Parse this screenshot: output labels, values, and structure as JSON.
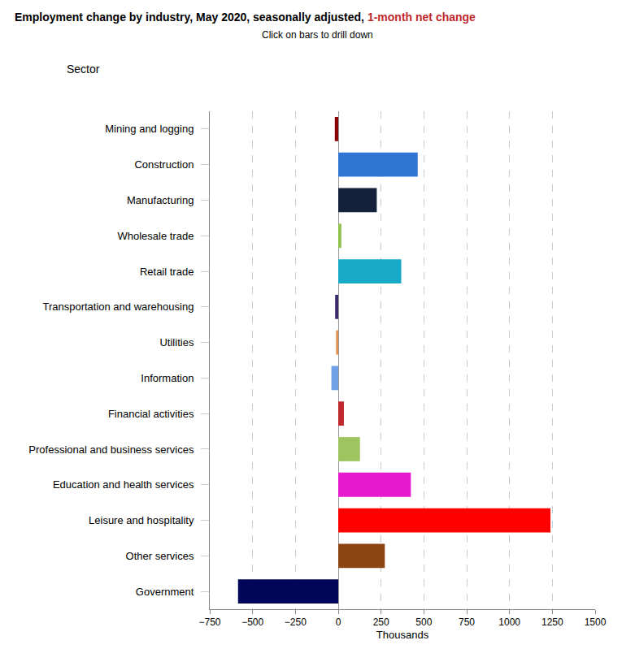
{
  "chart_data": {
    "type": "bar",
    "orientation": "horizontal",
    "title": "Employment change by industry, May 2020, seasonally adjusted, 1-month net change",
    "subtitle": "Click on bars to drill down",
    "y_label": "Sector",
    "x_label": "Thousands",
    "categories": [
      "Mining and logging",
      "Construction",
      "Manufacturing",
      "Wholesale trade",
      "Retail trade",
      "Transportation and warehousing",
      "Utilities",
      "Information",
      "Financial activities",
      "Professional and business services",
      "Education and health services",
      "Leisure and hospitality",
      "Other services",
      "Government"
    ],
    "values": [
      -20,
      464,
      225,
      18,
      368,
      -18,
      -13,
      -40,
      33,
      127,
      424,
      1239,
      272,
      -585
    ],
    "colors": [
      "#8b0000",
      "#2e75d4",
      "#13223a",
      "#8fc04a",
      "#19a9c8",
      "#3b2a6b",
      "#e8914a",
      "#6fa0e8",
      "#c0282d",
      "#9dc45e",
      "#e619cf",
      "#ff0000",
      "#8b4513",
      "#020659"
    ],
    "xlim": [
      -750,
      1500
    ],
    "xticks": [
      {
        "value": -750,
        "label": "−750"
      },
      {
        "value": -500,
        "label": "−500"
      },
      {
        "value": -250,
        "label": "−250"
      },
      0,
      250,
      500,
      750,
      1000,
      1250,
      1500
    ],
    "grid": true
  }
}
